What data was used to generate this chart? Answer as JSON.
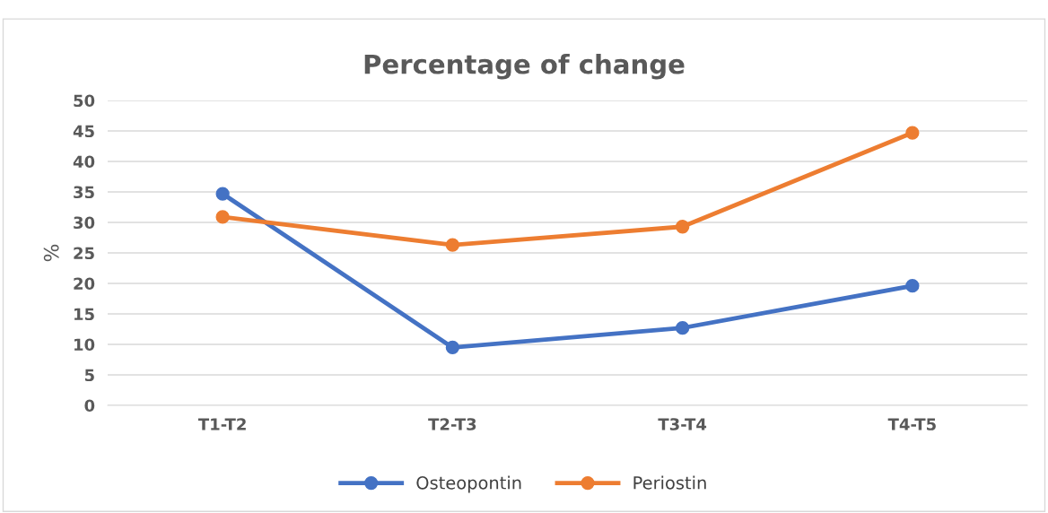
{
  "chart_data": {
    "type": "line",
    "title": "Percentage of change",
    "ylabel": "%",
    "categories": [
      "T1-T2",
      "T2-T3",
      "T3-T4",
      "T4-T5"
    ],
    "series": [
      {
        "name": "Osteopontin",
        "color": "#4472c4",
        "values": [
          34.7,
          9.5,
          12.7,
          19.6
        ]
      },
      {
        "name": "Periostin",
        "color": "#ed7d31",
        "values": [
          30.9,
          26.3,
          29.3,
          44.7
        ]
      }
    ],
    "ylim": [
      0,
      50
    ],
    "yticks": [
      0,
      5,
      10,
      15,
      20,
      25,
      30,
      35,
      40,
      45,
      50
    ],
    "grid": "y",
    "legend": "bottom",
    "marker": "circle",
    "line_style": "solid"
  }
}
